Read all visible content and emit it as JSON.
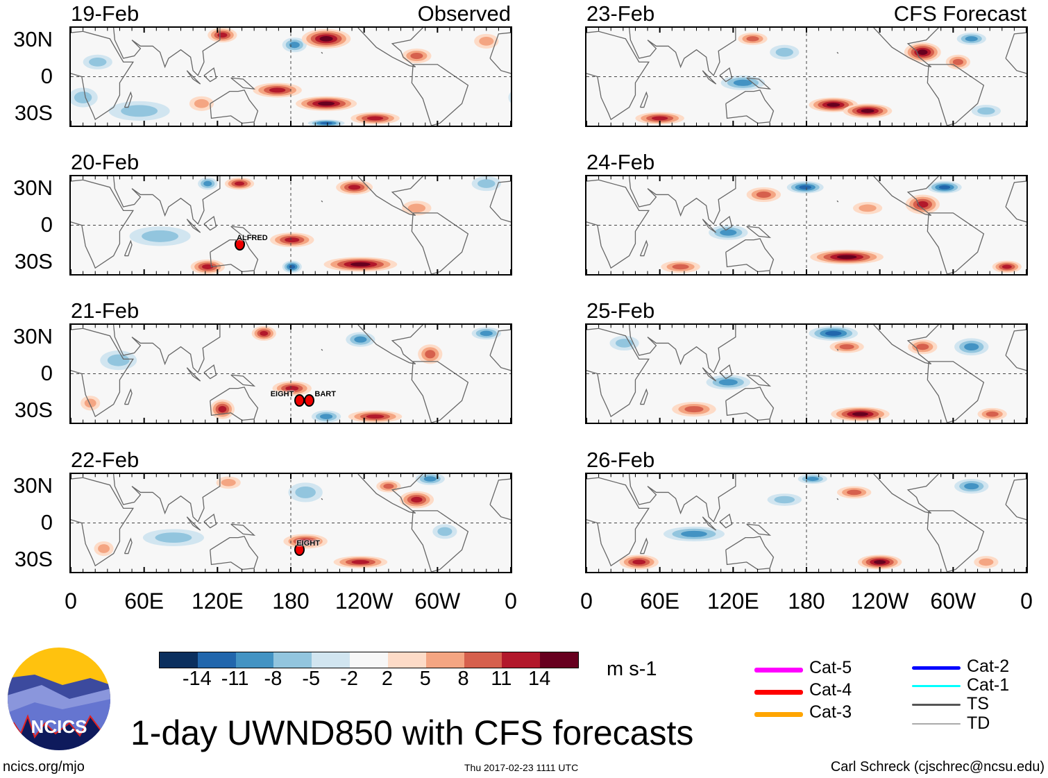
{
  "title": "1-day UWND850 with CFS forecasts",
  "footer": {
    "left": "ncics.org/mjo",
    "center": "Thu 2017-02-23 1111 UTC",
    "right": "Carl Schreck (cjschrec@ncsu.edu)"
  },
  "logo_text": "NCICS",
  "columns": {
    "left": "Observed",
    "right": "CFS Forecast"
  },
  "y_labels": [
    "30N",
    "0",
    "30S"
  ],
  "x_labels": [
    "0",
    "60E",
    "120E",
    "180",
    "120W",
    "60W",
    "0"
  ],
  "colorbar": {
    "units": "m s-1",
    "labels": [
      "-14",
      "-11",
      "-8",
      "-5",
      "-2",
      "2",
      "5",
      "8",
      "11",
      "14"
    ],
    "colors": [
      "#0b2f5e",
      "#2166ac",
      "#4393c3",
      "#92c5de",
      "#d1e5f0",
      "#f7f7f7",
      "#fddbc7",
      "#f4a582",
      "#d6604d",
      "#b2182b",
      "#67001f"
    ]
  },
  "legend": [
    {
      "label": "Cat-5",
      "color": "#ff00ff"
    },
    {
      "label": "Cat-4",
      "color": "#ff0000"
    },
    {
      "label": "Cat-3",
      "color": "#ffa500"
    },
    {
      "label": "Cat-2",
      "color": "#0000ff"
    },
    {
      "label": "Cat-1",
      "color": "#00ffff"
    },
    {
      "label": "TS",
      "color": "#555555"
    },
    {
      "label": "TD",
      "color": "#aaaaaa"
    }
  ],
  "chart_data": {
    "type": "heatmap",
    "variable": "850-hPa zonal wind anomaly",
    "units": "m s-1",
    "xlim": [
      0,
      360
    ],
    "ylim": [
      -40,
      40
    ],
    "panels": [
      {
        "date": "19-Feb",
        "source": "Observed",
        "anomalies": [
          [
            124,
            34,
            12,
            12,
            6
          ],
          [
            209,
            31,
            14,
            20,
            8
          ],
          [
            183,
            26,
            -9,
            10,
            6
          ],
          [
            169,
            -11,
            12,
            20,
            6
          ],
          [
            209,
            -22,
            14,
            25,
            6
          ],
          [
            249,
            -34,
            11,
            20,
            5
          ],
          [
            56,
            -28,
            -7,
            25,
            8
          ],
          [
            209,
            -38,
            -12,
            15,
            3
          ],
          [
            107,
            -22,
            6,
            10,
            6
          ],
          [
            10,
            -17,
            -5,
            12,
            8
          ],
          [
            283,
            17,
            8,
            12,
            6
          ],
          [
            340,
            29,
            6,
            10,
            6
          ],
          [
            22,
            12,
            -5,
            12,
            6
          ]
        ],
        "storms": []
      },
      {
        "date": "20-Feb",
        "source": "Observed",
        "anomalies": [
          [
            138,
            34,
            11,
            12,
            5
          ],
          [
            232,
            31,
            12,
            15,
            6
          ],
          [
            112,
            34,
            -8,
            8,
            5
          ],
          [
            181,
            -12,
            12,
            18,
            6
          ],
          [
            237,
            -32,
            14,
            30,
            6
          ],
          [
            112,
            -34,
            11,
            14,
            6
          ],
          [
            73,
            -9,
            -6,
            25,
            8
          ],
          [
            181,
            -34,
            -12,
            8,
            5
          ],
          [
            340,
            34,
            -7,
            12,
            6
          ],
          [
            283,
            14,
            6,
            12,
            6
          ]
        ],
        "storms": [
          {
            "name": "ALFRED",
            "lon": 138,
            "lat": -15
          }
        ]
      },
      {
        "date": "21-Feb",
        "source": "Observed",
        "anomalies": [
          [
            158,
            33,
            11,
            10,
            6
          ],
          [
            124,
            -29,
            12,
            10,
            8
          ],
          [
            181,
            -12,
            12,
            16,
            6
          ],
          [
            249,
            -35,
            13,
            22,
            5
          ],
          [
            294,
            16,
            9,
            10,
            8
          ],
          [
            237,
            28,
            -8,
            12,
            6
          ],
          [
            39,
            11,
            -5,
            15,
            8
          ],
          [
            16,
            -24,
            7,
            8,
            6
          ],
          [
            340,
            33,
            -8,
            12,
            5
          ],
          [
            209,
            -35,
            -8,
            12,
            5
          ]
        ],
        "storms": [
          {
            "name": "EIGHT",
            "lon": 187,
            "lat": -21
          },
          {
            "name": "BART",
            "lon": 195,
            "lat": -21
          }
        ]
      },
      {
        "date": "22-Feb",
        "source": "Observed",
        "anomalies": [
          [
            129,
            33,
            7,
            10,
            5
          ],
          [
            294,
            36,
            -10,
            12,
            5
          ],
          [
            283,
            19,
            11,
            14,
            7
          ],
          [
            260,
            30,
            8,
            10,
            5
          ],
          [
            192,
            -15,
            12,
            18,
            6
          ],
          [
            237,
            -32,
            12,
            22,
            5
          ],
          [
            84,
            -12,
            -7,
            25,
            7
          ],
          [
            192,
            25,
            -6,
            14,
            8
          ],
          [
            306,
            -7,
            -6,
            10,
            6
          ],
          [
            27,
            -21,
            6,
            8,
            6
          ]
        ],
        "storms": [
          {
            "name": "EIGHT",
            "lon": 187,
            "lat": -21
          }
        ]
      },
      {
        "date": "23-Feb",
        "source": "CFS Forecast",
        "anomalies": [
          [
            136,
            31,
            10,
            12,
            5
          ],
          [
            275,
            20,
            14,
            15,
            8
          ],
          [
            128,
            -5,
            -9,
            18,
            6
          ],
          [
            202,
            -23,
            14,
            20,
            6
          ],
          [
            230,
            -28,
            14,
            20,
            6
          ],
          [
            60,
            -34,
            11,
            20,
            5
          ],
          [
            315,
            31,
            -9,
            12,
            5
          ],
          [
            304,
            12,
            8,
            10,
            6
          ],
          [
            162,
            20,
            -7,
            12,
            6
          ],
          [
            327,
            -28,
            -7,
            12,
            5
          ]
        ],
        "storms": []
      },
      {
        "date": "24-Feb",
        "source": "CFS Forecast",
        "anomalies": [
          [
            179,
            31,
            -12,
            15,
            5
          ],
          [
            293,
            31,
            -12,
            14,
            5
          ],
          [
            275,
            17,
            13,
            14,
            8
          ],
          [
            145,
            25,
            8,
            14,
            6
          ],
          [
            213,
            -26,
            15,
            30,
            6
          ],
          [
            344,
            -34,
            11,
            12,
            5
          ],
          [
            77,
            -34,
            9,
            16,
            5
          ],
          [
            116,
            -6,
            -9,
            16,
            6
          ],
          [
            230,
            14,
            6,
            12,
            5
          ]
        ],
        "storms": []
      },
      {
        "date": "25-Feb",
        "source": "CFS Forecast",
        "anomalies": [
          [
            202,
            33,
            -12,
            20,
            6
          ],
          [
            315,
            22,
            -10,
            14,
            7
          ],
          [
            275,
            22,
            10,
            12,
            6
          ],
          [
            224,
            -33,
            15,
            24,
            6
          ],
          [
            88,
            -29,
            8,
            18,
            6
          ],
          [
            116,
            -7,
            -9,
            18,
            6
          ],
          [
            213,
            22,
            8,
            14,
            5
          ],
          [
            332,
            -33,
            8,
            12,
            5
          ],
          [
            31,
            25,
            -6,
            12,
            6
          ]
        ],
        "storms": []
      },
      {
        "date": "26-Feb",
        "source": "CFS Forecast",
        "anomalies": [
          [
            43,
            -32,
            13,
            16,
            6
          ],
          [
            240,
            -32,
            14,
            18,
            6
          ],
          [
            185,
            36,
            -10,
            12,
            4
          ],
          [
            88,
            -9,
            -9,
            25,
            6
          ],
          [
            219,
            25,
            8,
            14,
            5
          ],
          [
            315,
            30,
            -8,
            14,
            6
          ],
          [
            162,
            19,
            -6,
            14,
            5
          ],
          [
            327,
            -32,
            7,
            10,
            5
          ]
        ],
        "storms": []
      }
    ]
  }
}
